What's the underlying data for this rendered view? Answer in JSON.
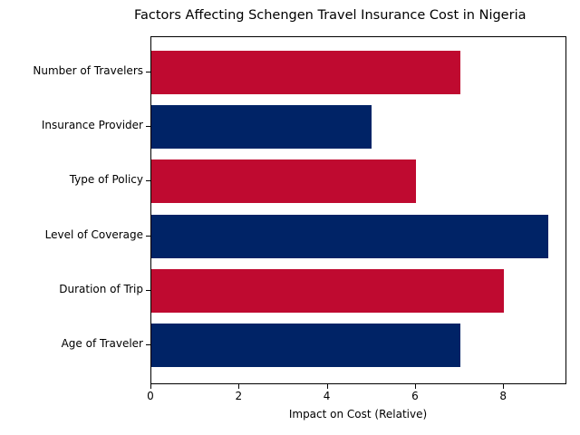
{
  "chart_data": {
    "type": "bar",
    "orientation": "horizontal",
    "title": "Factors Affecting Schengen Travel Insurance Cost in Nigeria",
    "xlabel": "Impact on Cost (Relative)",
    "ylabel": "",
    "categories": [
      "Age of Traveler",
      "Duration of Trip",
      "Level of Coverage",
      "Type of Policy",
      "Insurance Provider",
      "Number of Travelers"
    ],
    "values": [
      7,
      8,
      9,
      6,
      5,
      7
    ],
    "colors": [
      "#002366",
      "#BF0A30",
      "#002366",
      "#BF0A30",
      "#002366",
      "#BF0A30"
    ],
    "xlim": [
      0,
      9.45
    ],
    "xticks": [
      "0",
      "2",
      "4",
      "6",
      "8"
    ],
    "grid": false,
    "legend": null
  }
}
